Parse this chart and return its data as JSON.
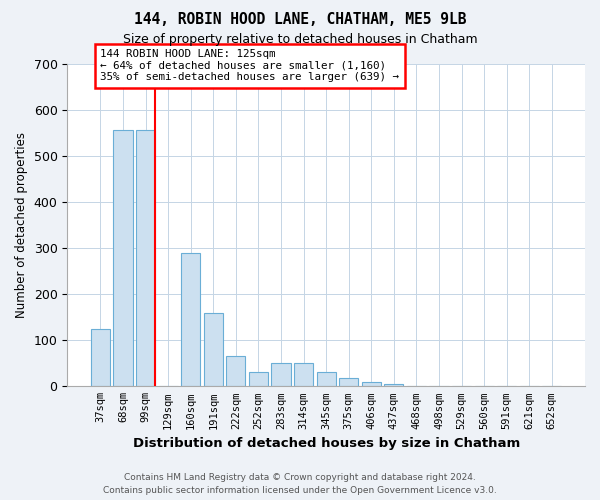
{
  "title": "144, ROBIN HOOD LANE, CHATHAM, ME5 9LB",
  "subtitle": "Size of property relative to detached houses in Chatham",
  "xlabel": "Distribution of detached houses by size in Chatham",
  "ylabel": "Number of detached properties",
  "footer_line1": "Contains HM Land Registry data © Crown copyright and database right 2024.",
  "footer_line2": "Contains public sector information licensed under the Open Government Licence v3.0.",
  "categories": [
    "37sqm",
    "68sqm",
    "99sqm",
    "129sqm",
    "160sqm",
    "191sqm",
    "222sqm",
    "252sqm",
    "283sqm",
    "314sqm",
    "345sqm",
    "375sqm",
    "406sqm",
    "437sqm",
    "468sqm",
    "498sqm",
    "529sqm",
    "560sqm",
    "591sqm",
    "621sqm",
    "652sqm"
  ],
  "values": [
    125,
    557,
    557,
    0,
    290,
    160,
    65,
    30,
    50,
    50,
    30,
    18,
    10,
    5,
    0,
    0,
    0,
    0,
    0,
    0,
    0
  ],
  "bar_color": "#cce0f0",
  "bar_edge_color": "#6aaed6",
  "ylim": [
    0,
    700
  ],
  "yticks": [
    0,
    100,
    200,
    300,
    400,
    500,
    600,
    700
  ],
  "red_line_index": 2,
  "annotation_text": "144 ROBIN HOOD LANE: 125sqm\n← 64% of detached houses are smaller (1,160)\n35% of semi-detached houses are larger (639) →",
  "annotation_box_color": "white",
  "annotation_box_edge_color": "red",
  "red_line_color": "red",
  "background_color": "#eef2f7",
  "plot_bg_color": "white",
  "grid_color": "#c5d5e5"
}
